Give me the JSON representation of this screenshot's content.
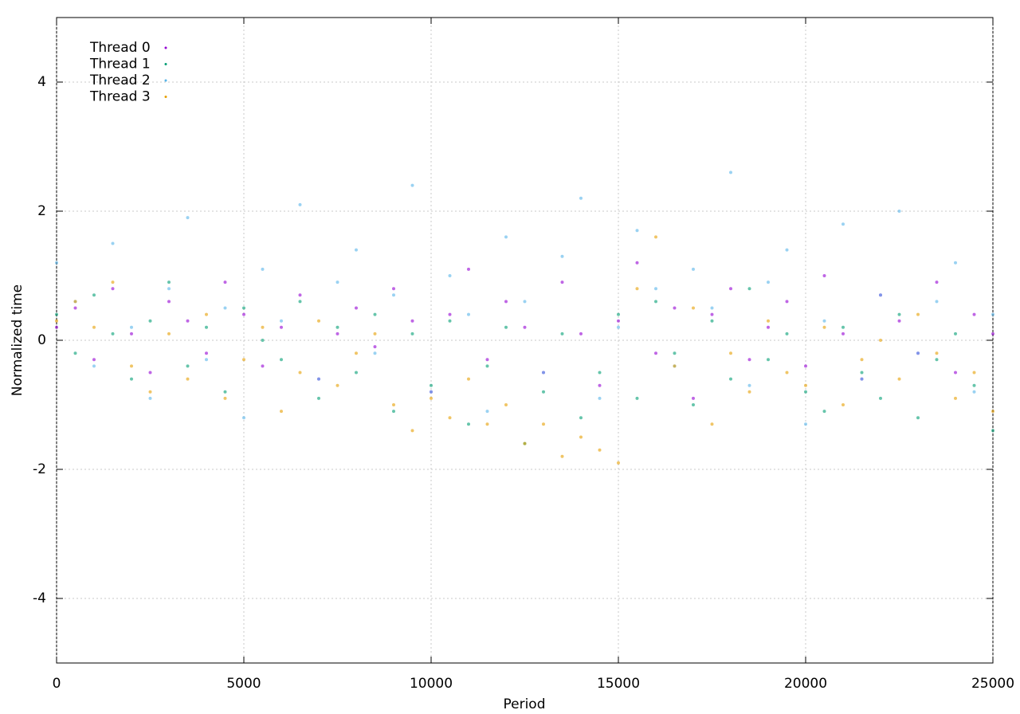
{
  "chart_data": {
    "type": "scatter",
    "xlabel": "Period",
    "ylabel": "Normalized time",
    "xlim": [
      0,
      25000
    ],
    "xticks": [
      0,
      5000,
      10000,
      15000,
      20000,
      25000
    ],
    "ylim": [
      -5,
      5
    ],
    "yticks": [
      -4,
      -2,
      0,
      2,
      4
    ],
    "grid": true,
    "legend": "top-left",
    "x": [
      0,
      500,
      1000,
      1500,
      2000,
      2500,
      3000,
      3500,
      4000,
      4500,
      5000,
      5500,
      6000,
      6500,
      7000,
      7500,
      8000,
      8500,
      9000,
      9500,
      10000,
      10500,
      11000,
      11500,
      12000,
      12500,
      13000,
      13500,
      14000,
      14500,
      15000,
      15500,
      16000,
      16500,
      17000,
      17500,
      18000,
      18500,
      19000,
      19500,
      20000,
      20500,
      21000,
      21500,
      22000,
      22500,
      23000,
      23500,
      24000,
      24500,
      25000
    ],
    "series": [
      {
        "name": "Thread 0",
        "color": "#9400d3",
        "values": [
          0.2,
          0.5,
          -0.3,
          0.8,
          0.1,
          -0.5,
          0.6,
          0.3,
          -0.2,
          0.9,
          0.4,
          -0.4,
          0.2,
          0.7,
          -0.6,
          0.1,
          0.5,
          -0.1,
          0.8,
          0.3,
          -0.8,
          0.4,
          1.1,
          -0.3,
          0.6,
          0.2,
          -0.5,
          0.9,
          0.1,
          -0.7,
          0.3,
          1.2,
          -0.2,
          0.5,
          -0.9,
          0.4,
          0.8,
          -0.3,
          0.2,
          0.6,
          -0.4,
          1.0,
          0.1,
          -0.6,
          0.7,
          0.3,
          -0.2,
          0.9,
          -0.5,
          0.4,
          0.1
        ]
      },
      {
        "name": "Thread 1",
        "color": "#009e73",
        "values": [
          0.4,
          -0.2,
          0.7,
          0.1,
          -0.6,
          0.3,
          0.9,
          -0.4,
          0.2,
          -0.8,
          0.5,
          0.0,
          -0.3,
          0.6,
          -0.9,
          0.2,
          -0.5,
          0.4,
          -1.1,
          0.1,
          -0.7,
          0.3,
          -1.3,
          -0.4,
          0.2,
          -1.6,
          -0.8,
          0.1,
          -1.2,
          -0.5,
          0.4,
          -0.9,
          0.6,
          -0.2,
          -1.0,
          0.3,
          -0.6,
          0.8,
          -0.3,
          0.1,
          -0.8,
          -1.1,
          0.2,
          -0.5,
          -0.9,
          0.4,
          -1.2,
          -0.3,
          0.1,
          -0.7,
          -1.4
        ]
      },
      {
        "name": "Thread 2",
        "color": "#56b4e9",
        "values": [
          1.2,
          0.6,
          -0.4,
          1.5,
          0.2,
          -0.9,
          0.8,
          1.9,
          -0.3,
          0.5,
          -1.2,
          1.1,
          0.3,
          2.1,
          -0.6,
          0.9,
          1.4,
          -0.2,
          0.7,
          2.4,
          -0.8,
          1.0,
          0.4,
          -1.1,
          1.6,
          0.6,
          -0.5,
          1.3,
          2.2,
          -0.9,
          0.2,
          1.7,
          0.8,
          -0.4,
          1.1,
          0.5,
          2.6,
          -0.7,
          0.9,
          1.4,
          -1.3,
          0.3,
          1.8,
          -0.6,
          0.7,
          2.0,
          -0.2,
          0.6,
          1.2,
          -0.8,
          0.4
        ]
      },
      {
        "name": "Thread 3",
        "color": "#e69f00",
        "values": [
          0.3,
          0.6,
          0.2,
          0.9,
          -0.4,
          -0.8,
          0.1,
          -0.6,
          0.4,
          -0.9,
          -0.3,
          0.2,
          -1.1,
          -0.5,
          0.3,
          -0.7,
          -0.2,
          0.1,
          -1.0,
          -1.4,
          -0.9,
          -1.2,
          -0.6,
          -1.3,
          -1.0,
          -1.6,
          -1.3,
          -1.8,
          -1.5,
          -1.7,
          -1.9,
          0.8,
          1.6,
          -0.4,
          0.5,
          -1.3,
          -0.2,
          -0.8,
          0.3,
          -0.5,
          -0.7,
          0.2,
          -1.0,
          -0.3,
          0.0,
          -0.6,
          0.4,
          -0.2,
          -0.9,
          -0.5,
          -1.1
        ]
      }
    ]
  }
}
